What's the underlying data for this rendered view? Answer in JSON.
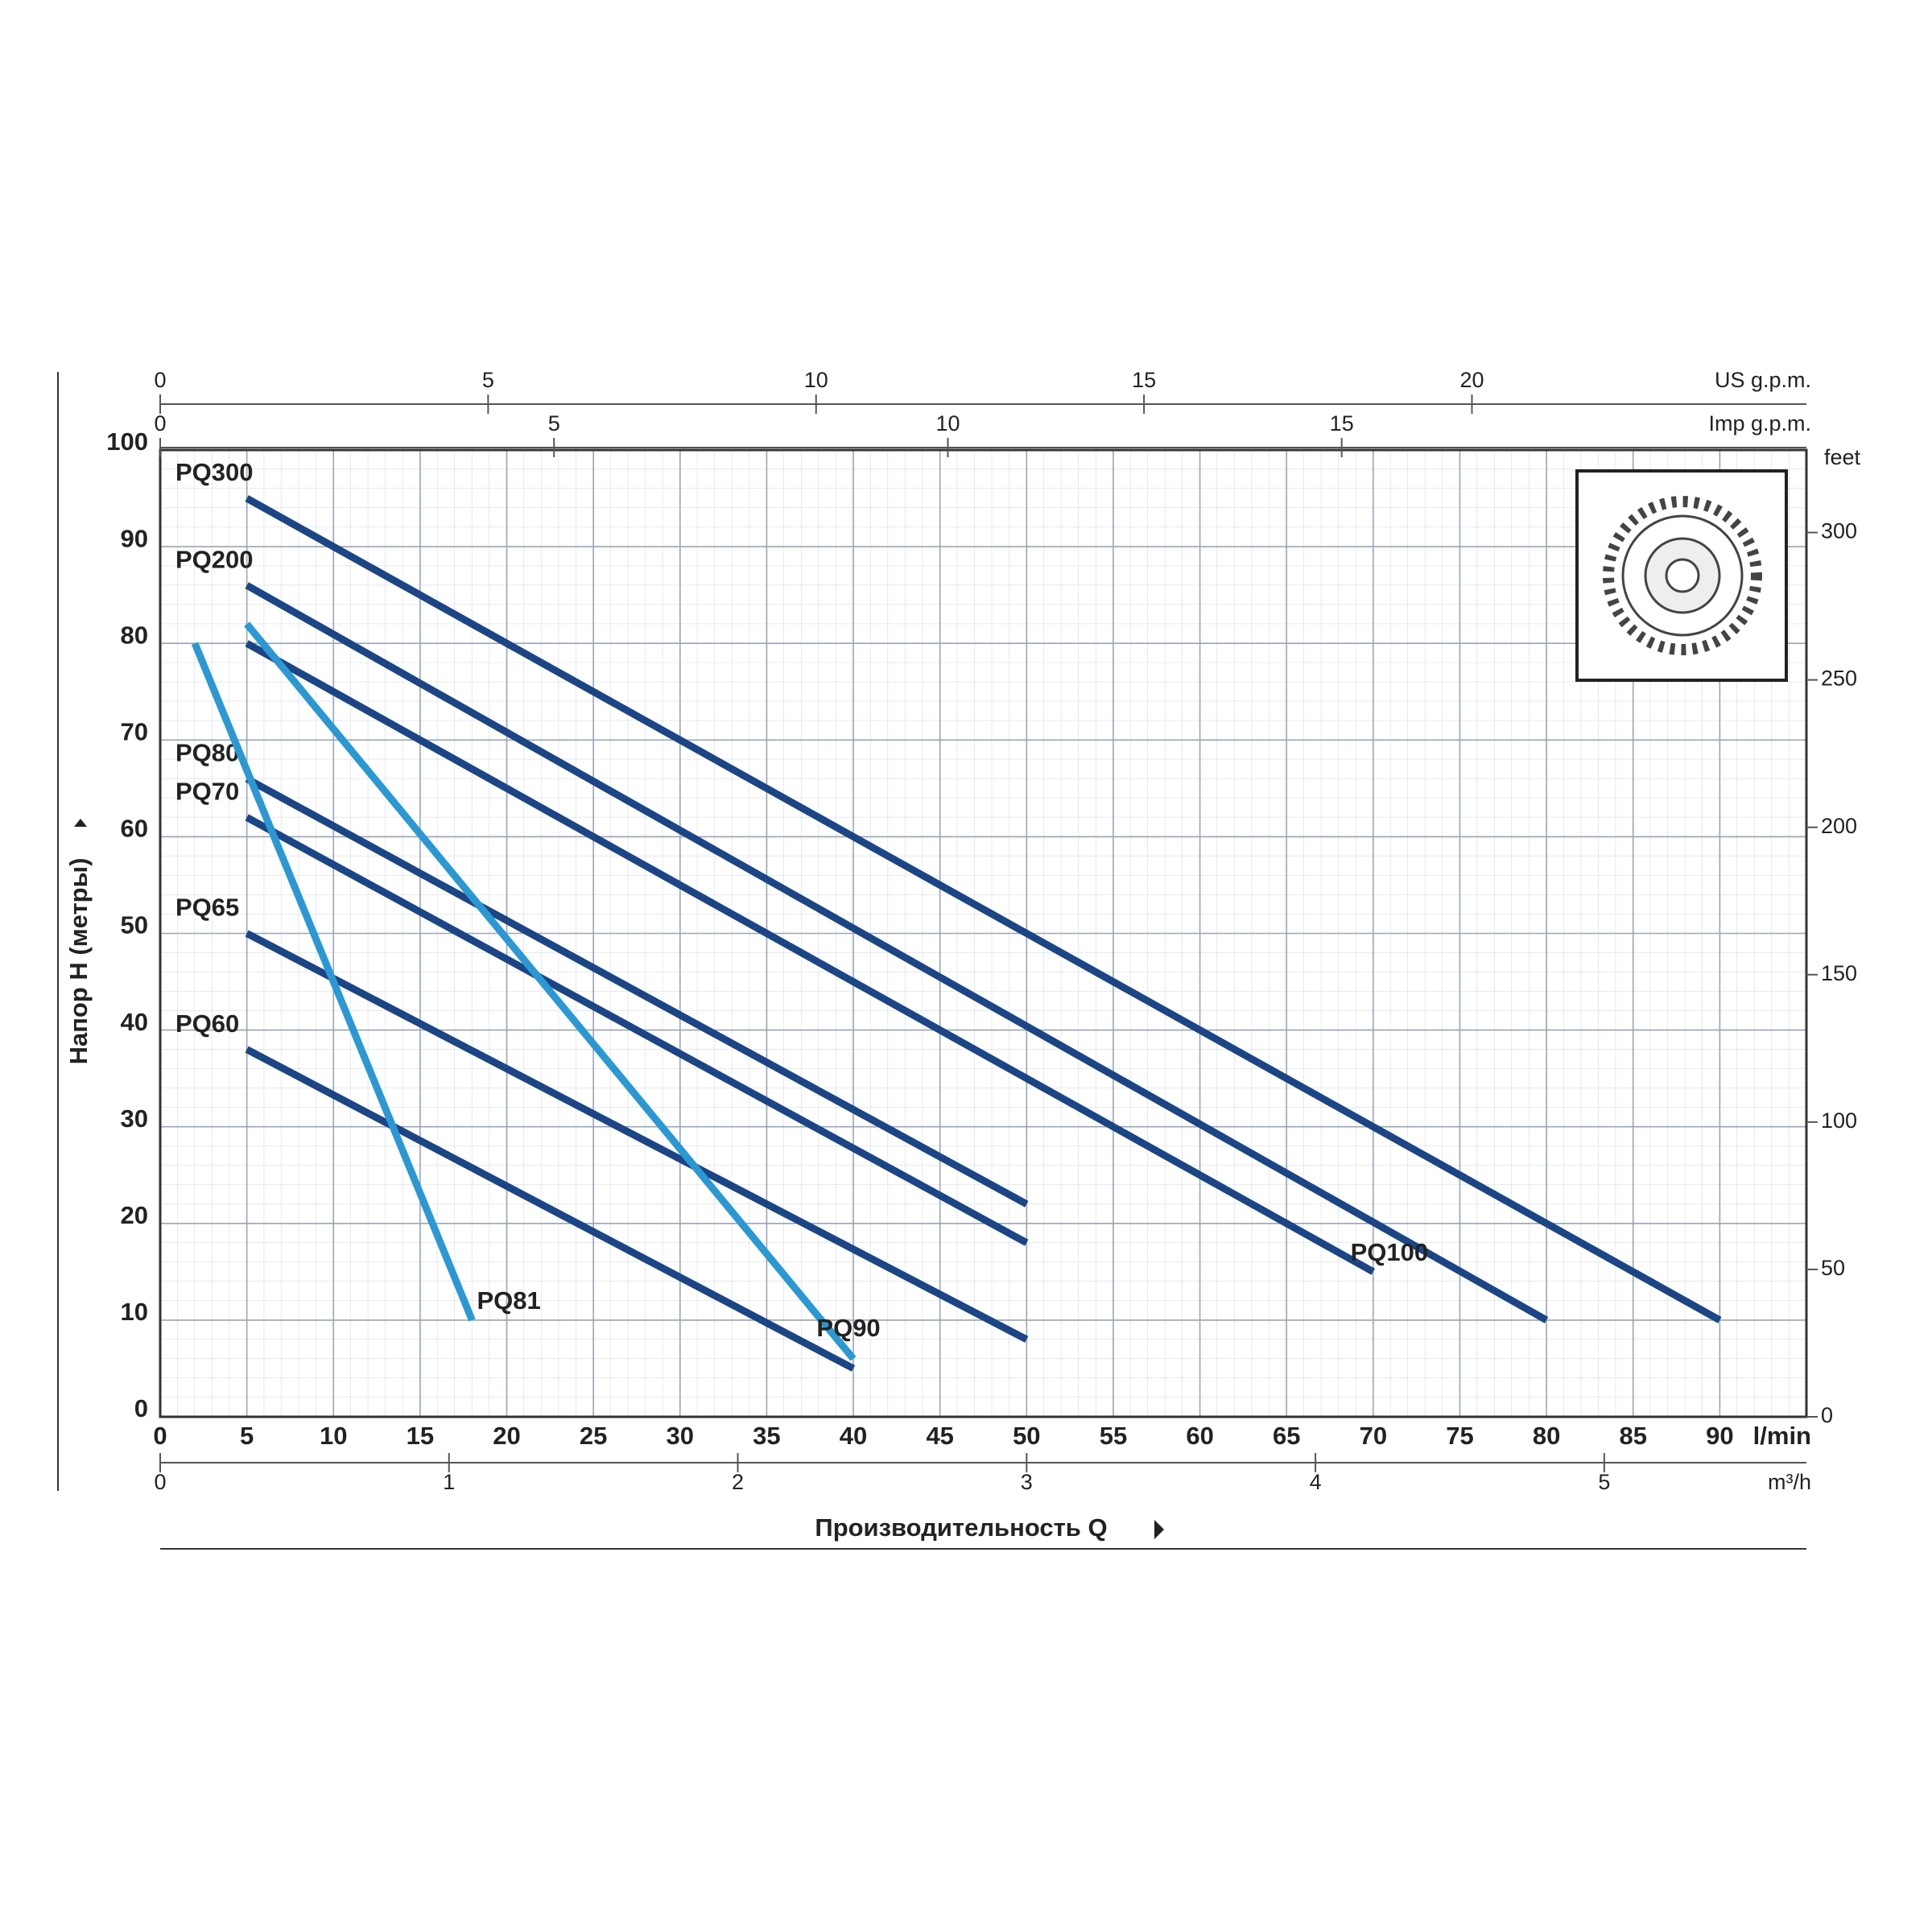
{
  "chart_data": {
    "type": "line",
    "xlabel": "Производительность Q",
    "ylabel": "Напор H (метры)",
    "x_unit": "l/min",
    "xlim": [
      0,
      95
    ],
    "xticks": [
      0,
      5,
      10,
      15,
      20,
      25,
      30,
      35,
      40,
      45,
      50,
      55,
      60,
      65,
      70,
      75,
      80,
      85,
      90
    ],
    "ylim": [
      0,
      100
    ],
    "yticks": [
      0,
      10,
      20,
      30,
      40,
      50,
      60,
      70,
      80,
      90,
      100
    ],
    "grid": true,
    "secondary_axes": [
      {
        "label": "US g.p.m.",
        "side": "top",
        "lim": [
          0,
          25.1
        ],
        "ticks": [
          0,
          5,
          10,
          15,
          20
        ]
      },
      {
        "label": "Imp g.p.m.",
        "side": "top",
        "lim": [
          0,
          20.9
        ],
        "ticks": [
          0,
          5,
          10,
          15
        ]
      },
      {
        "label": "m³/h",
        "side": "bottom",
        "lim": [
          0,
          5.7
        ],
        "ticks": [
          0,
          1,
          2,
          3,
          4,
          5
        ]
      },
      {
        "label": "feet",
        "side": "right",
        "lim": [
          0,
          328
        ],
        "ticks": [
          0,
          50,
          100,
          150,
          200,
          250,
          300
        ]
      }
    ],
    "series": [
      {
        "name": "PQ300",
        "color": "#1b4585",
        "x": [
          5,
          90
        ],
        "values": [
          95,
          10
        ]
      },
      {
        "name": "PQ200",
        "color": "#1b4585",
        "x": [
          5,
          80
        ],
        "values": [
          86,
          10
        ]
      },
      {
        "name": "PQ100",
        "color": "#1b4585",
        "x": [
          5,
          70
        ],
        "values": [
          80,
          15
        ]
      },
      {
        "name": "PQ80",
        "color": "#1b4585",
        "x": [
          5,
          50
        ],
        "values": [
          66,
          22
        ]
      },
      {
        "name": "PQ70",
        "color": "#1b4585",
        "x": [
          5,
          50
        ],
        "values": [
          62,
          18
        ]
      },
      {
        "name": "PQ65",
        "color": "#1b4585",
        "x": [
          5,
          50
        ],
        "values": [
          50,
          8
        ]
      },
      {
        "name": "PQ60",
        "color": "#1b4585",
        "x": [
          5,
          40
        ],
        "values": [
          38,
          5
        ]
      },
      {
        "name": "PQ81",
        "color": "#2b98d4",
        "x": [
          2,
          18
        ],
        "values": [
          80,
          10
        ]
      },
      {
        "name": "PQ90",
        "color": "#2b98d4",
        "x": [
          5,
          40
        ],
        "values": [
          82,
          6
        ]
      }
    ]
  }
}
